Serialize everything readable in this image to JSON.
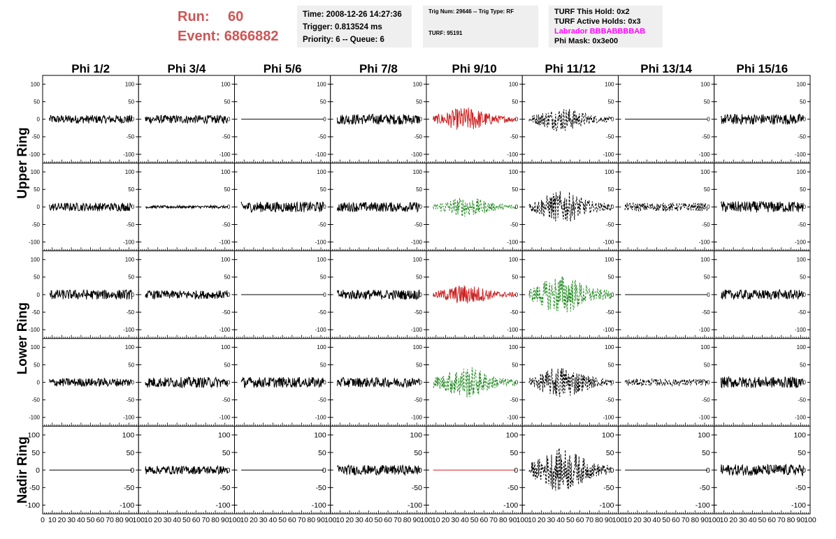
{
  "header": {
    "run_label": "Run:",
    "run_value": "60",
    "event_label": "Event:",
    "event_value": "6866882",
    "time": "Time: 2008-12-26 14:27:36",
    "trigger": "Trigger: 0.813524 ms",
    "priority": "Priority: 6 -- Queue: 6",
    "trig_num": "Trig Num: 29646 -- Trig Type: RF",
    "turf": "TURF: 95191",
    "turf_hold": "TURF This Hold: 0x2",
    "turf_active": "TURF Active Holds: 0x3",
    "labrador": "Labrador BBBABBBBAB",
    "phi_mask": "Phi Mask: 0x3e00"
  },
  "colors": {
    "header_red": "#cd5555",
    "red": "#cc2222",
    "green": "#228b22",
    "black": "#000000",
    "magenta": "#ff00ff"
  },
  "chart_data": {
    "type": "line",
    "columns": [
      "Phi 1/2",
      "Phi 3/4",
      "Phi 5/6",
      "Phi 7/8",
      "Phi 9/10",
      "Phi 11/12",
      "Phi 13/14",
      "Phi 15/16"
    ],
    "ring_labels": [
      "Upper Ring",
      "Lower Ring",
      "Nadir Ring"
    ],
    "rows": 5,
    "xlim": [
      0,
      100
    ],
    "ylim": [
      -125,
      125
    ],
    "x_ticks": [
      "0",
      "10",
      "20",
      "30",
      "40",
      "50",
      "60",
      "70",
      "80",
      "90",
      "100"
    ],
    "y_ticks": [
      "100",
      "50",
      "0",
      "-50",
      "-100"
    ],
    "panels": [
      [
        {
          "amp": 12,
          "style": "solid",
          "color": "black"
        },
        {
          "amp": 12,
          "style": "solid",
          "color": "black"
        },
        {
          "amp": 0,
          "style": "solid",
          "color": "black"
        },
        {
          "amp": 15,
          "style": "solid",
          "color": "black"
        },
        {
          "amp": 30,
          "style": "solid",
          "color": "red",
          "envelope": true
        },
        {
          "amp": 30,
          "style": "dashed",
          "color": "black",
          "envelope": true
        },
        {
          "amp": 0,
          "style": "solid",
          "color": "black"
        },
        {
          "amp": 15,
          "style": "solid",
          "color": "black"
        }
      ],
      [
        {
          "amp": 12,
          "style": "solid",
          "color": "black"
        },
        {
          "amp": 4,
          "style": "solid",
          "color": "black"
        },
        {
          "amp": 15,
          "style": "solid",
          "color": "black"
        },
        {
          "amp": 14,
          "style": "solid",
          "color": "black"
        },
        {
          "amp": 25,
          "style": "dashed",
          "color": "green",
          "envelope": true
        },
        {
          "amp": 40,
          "style": "dashed",
          "color": "black",
          "envelope": true
        },
        {
          "amp": 12,
          "style": "dashed",
          "color": "black"
        },
        {
          "amp": 16,
          "style": "solid",
          "color": "black"
        }
      ],
      [
        {
          "amp": 14,
          "style": "solid",
          "color": "black"
        },
        {
          "amp": 12,
          "style": "solid",
          "color": "black"
        },
        {
          "amp": 0,
          "style": "solid",
          "color": "black"
        },
        {
          "amp": 14,
          "style": "solid",
          "color": "black"
        },
        {
          "amp": 25,
          "style": "solid",
          "color": "red",
          "envelope": true
        },
        {
          "amp": 50,
          "style": "dashed",
          "color": "green",
          "envelope": true
        },
        {
          "amp": 0,
          "style": "solid",
          "color": "black"
        },
        {
          "amp": 14,
          "style": "solid",
          "color": "black"
        }
      ],
      [
        {
          "amp": 12,
          "style": "solid",
          "color": "black"
        },
        {
          "amp": 15,
          "style": "solid",
          "color": "black"
        },
        {
          "amp": 15,
          "style": "solid",
          "color": "black"
        },
        {
          "amp": 14,
          "style": "solid",
          "color": "black"
        },
        {
          "amp": 40,
          "style": "dashed",
          "color": "green",
          "envelope": true
        },
        {
          "amp": 40,
          "style": "dashed",
          "color": "black",
          "envelope": true
        },
        {
          "amp": 10,
          "style": "dashed",
          "color": "black"
        },
        {
          "amp": 16,
          "style": "solid",
          "color": "black"
        }
      ],
      [
        {
          "amp": 0,
          "style": "solid",
          "color": "black"
        },
        {
          "amp": 12,
          "style": "solid",
          "color": "black"
        },
        {
          "amp": 0,
          "style": "solid",
          "color": "black"
        },
        {
          "amp": 14,
          "style": "solid",
          "color": "black"
        },
        {
          "amp": 0,
          "style": "solid",
          "color": "red"
        },
        {
          "amp": 55,
          "style": "dashed",
          "color": "black",
          "envelope": true
        },
        {
          "amp": 0,
          "style": "solid",
          "color": "black"
        },
        {
          "amp": 16,
          "style": "solid",
          "color": "black"
        }
      ]
    ]
  }
}
